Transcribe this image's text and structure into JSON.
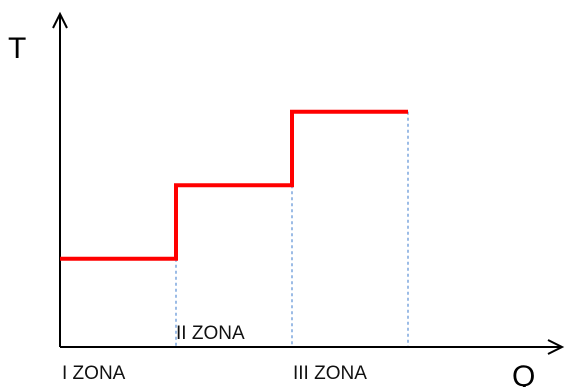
{
  "chart_data": {
    "type": "line",
    "title": "",
    "xlabel": "Q",
    "ylabel": "T",
    "xlim": [
      0,
      4.4
    ],
    "ylim": [
      0,
      4.4
    ],
    "grid": false,
    "legend": "none",
    "series": [
      {
        "values": [
          {
            "x": 0,
            "y": 1.2
          },
          {
            "x": 1.0,
            "y": 1.2
          },
          {
            "x": 1.0,
            "y": 2.2
          },
          {
            "x": 2.0,
            "y": 2.2
          },
          {
            "x": 2.0,
            "y": 3.2
          },
          {
            "x": 3.0,
            "y": 3.2
          }
        ]
      }
    ],
    "guides": [
      {
        "x": 1.0,
        "y": 1.2
      },
      {
        "x": 2.0,
        "y": 2.2
      },
      {
        "x": 3.0,
        "y": 3.2
      }
    ],
    "annotations": [
      "I ZONA",
      "II ZONA",
      "III ZONA"
    ],
    "colors": {
      "series": "#ff0000",
      "axis": "#000000",
      "guide": "#5b8fd6"
    }
  }
}
